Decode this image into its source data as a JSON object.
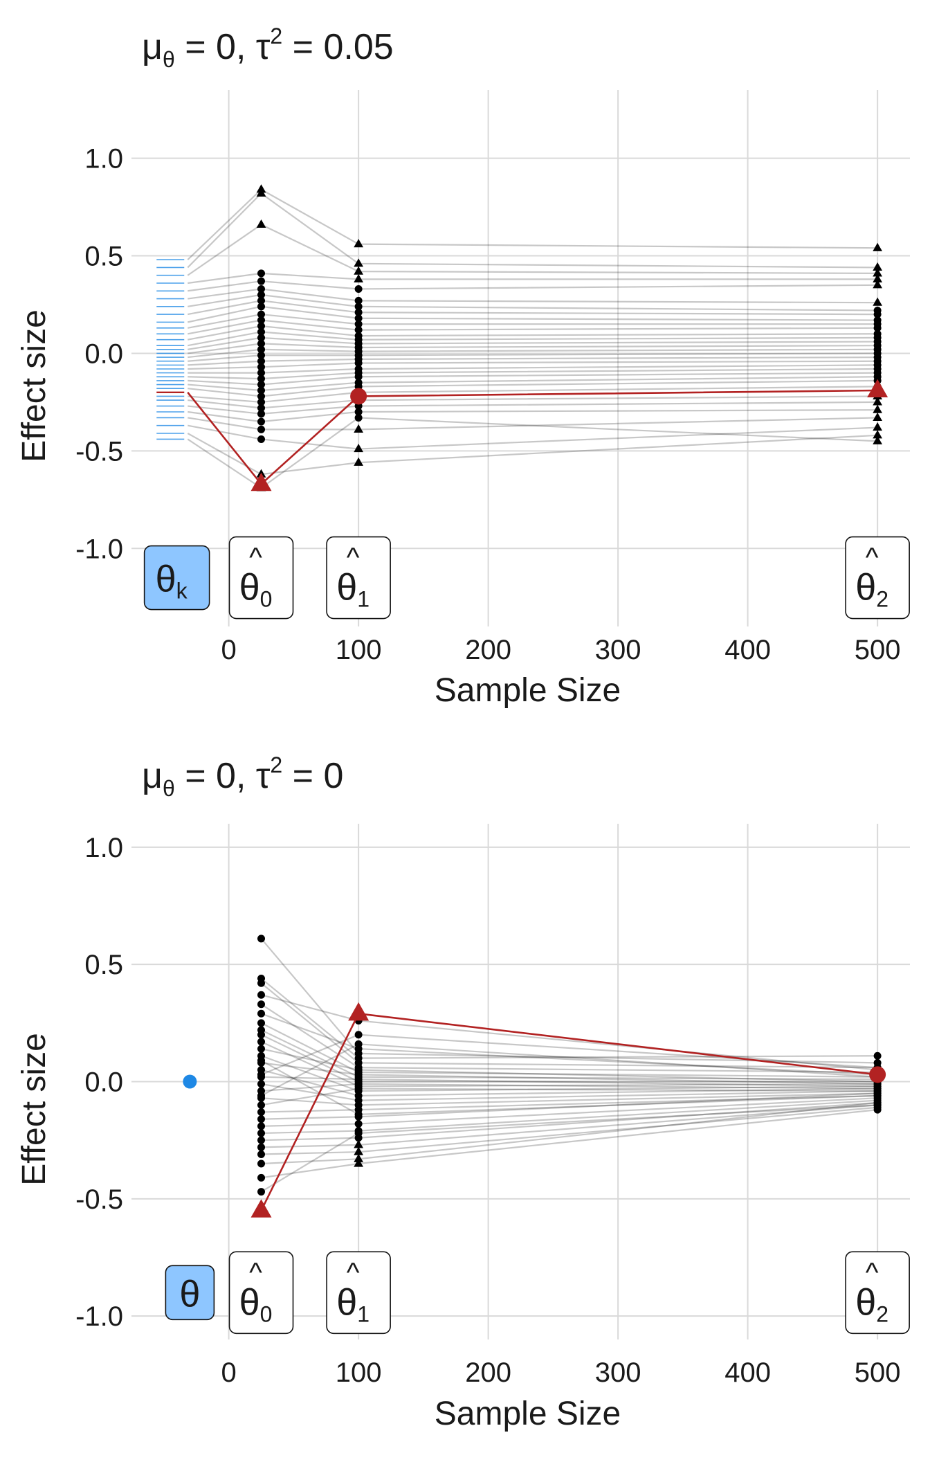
{
  "chart_data": [
    {
      "type": "scatter",
      "title": {
        "main": "μ",
        "main_sub": "θ",
        "mid": " = 0, τ",
        "mid_sup": "2",
        "end": " = 0.05"
      },
      "xlabel": "Sample Size",
      "ylabel": "Effect size",
      "xlim": [
        -75,
        525
      ],
      "ylim": [
        -1.4,
        1.35
      ],
      "xticks": [
        0,
        100,
        200,
        300,
        400,
        500
      ],
      "yticks": [
        1.0,
        0.5,
        0.0,
        -0.5,
        -1.0
      ],
      "xtick_labels": [
        "0",
        "100",
        "200",
        "300",
        "400",
        "500"
      ],
      "ytick_labels": [
        "1.0",
        "0.5",
        "0.0",
        "-0.5",
        "-1.0"
      ],
      "grid": true,
      "true_effect_x": -45,
      "true_effect_kind": "rug",
      "sample_x": [
        25,
        100,
        500
      ],
      "colors": {
        "true": "#1e88e5",
        "highlight": "#b22222",
        "points": "#000000",
        "box_true": "#8ec6ff"
      },
      "labels": {
        "truth": {
          "x": -40,
          "y": -1.15,
          "main": "θ",
          "sub": "k",
          "hat": ""
        },
        "est0": {
          "x": 25,
          "y": -1.15,
          "main": "θ",
          "sub": "0",
          "hat": "^"
        },
        "est1": {
          "x": 100,
          "y": -1.15,
          "main": "θ",
          "sub": "1",
          "hat": "^"
        },
        "est2": {
          "x": 500,
          "y": -1.15,
          "main": "θ",
          "sub": "2",
          "hat": "^"
        }
      },
      "highlight": {
        "theta": -0.2,
        "ys": [
          -0.67,
          -0.22,
          -0.19
        ],
        "shapes": [
          "triangle",
          "circle",
          "triangle"
        ]
      },
      "studies": [
        {
          "theta": 0.48,
          "ys": [
            0.84,
            0.56,
            0.54
          ],
          "shapes": [
            "triangle",
            "triangle",
            "triangle"
          ]
        },
        {
          "theta": 0.44,
          "ys": [
            0.82,
            0.46,
            0.44
          ],
          "shapes": [
            "triangle",
            "triangle",
            "triangle"
          ]
        },
        {
          "theta": 0.4,
          "ys": [
            0.66,
            0.42,
            0.41
          ],
          "shapes": [
            "triangle",
            "triangle",
            "triangle"
          ]
        },
        {
          "theta": 0.36,
          "ys": [
            0.41,
            0.38,
            0.38
          ],
          "shapes": [
            "circle",
            "triangle",
            "triangle"
          ]
        },
        {
          "theta": 0.32,
          "ys": [
            0.37,
            0.33,
            0.35
          ],
          "shapes": [
            "circle",
            "circle",
            "triangle"
          ]
        },
        {
          "theta": 0.28,
          "ys": [
            0.33,
            0.27,
            0.26
          ],
          "shapes": [
            "circle",
            "circle",
            "triangle"
          ]
        },
        {
          "theta": 0.24,
          "ys": [
            0.3,
            0.24,
            0.22
          ],
          "shapes": [
            "circle",
            "circle",
            "circle"
          ]
        },
        {
          "theta": 0.2,
          "ys": [
            0.27,
            0.21,
            0.2
          ],
          "shapes": [
            "circle",
            "circle",
            "circle"
          ]
        },
        {
          "theta": 0.16,
          "ys": [
            0.24,
            0.18,
            0.17
          ],
          "shapes": [
            "circle",
            "circle",
            "circle"
          ]
        },
        {
          "theta": 0.13,
          "ys": [
            0.2,
            0.15,
            0.15
          ],
          "shapes": [
            "circle",
            "circle",
            "circle"
          ]
        },
        {
          "theta": 0.1,
          "ys": [
            0.17,
            0.12,
            0.13
          ],
          "shapes": [
            "circle",
            "circle",
            "circle"
          ]
        },
        {
          "theta": 0.07,
          "ys": [
            0.14,
            0.09,
            0.1
          ],
          "shapes": [
            "circle",
            "circle",
            "circle"
          ]
        },
        {
          "theta": 0.04,
          "ys": [
            0.11,
            0.07,
            0.08
          ],
          "shapes": [
            "circle",
            "circle",
            "circle"
          ]
        },
        {
          "theta": 0.02,
          "ys": [
            0.08,
            0.05,
            0.06
          ],
          "shapes": [
            "circle",
            "circle",
            "circle"
          ]
        },
        {
          "theta": 0.0,
          "ys": [
            0.05,
            0.03,
            0.04
          ],
          "shapes": [
            "circle",
            "circle",
            "circle"
          ]
        },
        {
          "theta": -0.02,
          "ys": [
            0.02,
            0.01,
            0.02
          ],
          "shapes": [
            "circle",
            "circle",
            "circle"
          ]
        },
        {
          "theta": -0.04,
          "ys": [
            -0.01,
            -0.01,
            0.0
          ],
          "shapes": [
            "circle",
            "circle",
            "circle"
          ]
        },
        {
          "theta": -0.06,
          "ys": [
            -0.04,
            -0.03,
            -0.02
          ],
          "shapes": [
            "circle",
            "circle",
            "circle"
          ]
        },
        {
          "theta": -0.08,
          "ys": [
            -0.07,
            -0.05,
            -0.04
          ],
          "shapes": [
            "circle",
            "circle",
            "circle"
          ]
        },
        {
          "theta": -0.1,
          "ys": [
            -0.1,
            -0.08,
            -0.06
          ],
          "shapes": [
            "circle",
            "circle",
            "circle"
          ]
        },
        {
          "theta": -0.12,
          "ys": [
            -0.13,
            -0.1,
            -0.08
          ],
          "shapes": [
            "circle",
            "circle",
            "circle"
          ]
        },
        {
          "theta": -0.14,
          "ys": [
            -0.16,
            -0.12,
            -0.1
          ],
          "shapes": [
            "circle",
            "circle",
            "circle"
          ]
        },
        {
          "theta": -0.16,
          "ys": [
            -0.19,
            -0.15,
            -0.12
          ],
          "shapes": [
            "circle",
            "circle",
            "circle"
          ]
        },
        {
          "theta": -0.18,
          "ys": [
            -0.22,
            -0.17,
            -0.14
          ],
          "shapes": [
            "circle",
            "circle",
            "circle"
          ]
        },
        {
          "theta": -0.22,
          "ys": [
            -0.25,
            -0.2,
            -0.17
          ],
          "shapes": [
            "circle",
            "circle",
            "circle"
          ]
        },
        {
          "theta": -0.24,
          "ys": [
            -0.28,
            -0.24,
            -0.22
          ],
          "shapes": [
            "circle",
            "circle",
            "triangle"
          ]
        },
        {
          "theta": -0.27,
          "ys": [
            -0.31,
            -0.27,
            -0.25
          ],
          "shapes": [
            "circle",
            "circle",
            "triangle"
          ]
        },
        {
          "theta": -0.3,
          "ys": [
            -0.35,
            -0.3,
            -0.29
          ],
          "shapes": [
            "circle",
            "circle",
            "triangle"
          ]
        },
        {
          "theta": -0.33,
          "ys": [
            -0.39,
            -0.39,
            -0.33
          ],
          "shapes": [
            "circle",
            "triangle",
            "triangle"
          ]
        },
        {
          "theta": -0.37,
          "ys": [
            -0.44,
            -0.49,
            -0.38
          ],
          "shapes": [
            "circle",
            "triangle",
            "triangle"
          ]
        },
        {
          "theta": -0.41,
          "ys": [
            -0.62,
            -0.56,
            -0.42
          ],
          "shapes": [
            "triangle",
            "triangle",
            "triangle"
          ]
        },
        {
          "theta": -0.44,
          "ys": [
            -0.69,
            -0.33,
            -0.45
          ],
          "shapes": [
            "triangle",
            "circle",
            "triangle"
          ]
        }
      ]
    },
    {
      "type": "scatter",
      "title": {
        "main": "μ",
        "main_sub": "θ",
        "mid": " = 0, τ",
        "mid_sup": "2",
        "end": " = 0"
      },
      "xlabel": "Sample Size",
      "ylabel": "Effect size",
      "xlim": [
        -75,
        525
      ],
      "ylim": [
        -1.1,
        1.1
      ],
      "xticks": [
        0,
        100,
        200,
        300,
        400,
        500
      ],
      "yticks": [
        1.0,
        0.5,
        0.0,
        -0.5,
        -1.0
      ],
      "xtick_labels": [
        "0",
        "100",
        "200",
        "300",
        "400",
        "500"
      ],
      "ytick_labels": [
        "1.0",
        "0.5",
        "0.0",
        "-0.5",
        "-1.0"
      ],
      "grid": true,
      "true_effect_x": -30,
      "true_effect_kind": "point",
      "sample_x": [
        25,
        100,
        500
      ],
      "colors": {
        "true": "#1e88e5",
        "highlight": "#b22222",
        "points": "#000000",
        "box_true": "#8ec6ff"
      },
      "labels": {
        "truth": {
          "x": -30,
          "y": -0.9,
          "main": "θ",
          "sub": "",
          "hat": ""
        },
        "est0": {
          "x": 25,
          "y": -0.9,
          "main": "θ",
          "sub": "0",
          "hat": "^"
        },
        "est1": {
          "x": 100,
          "y": -0.9,
          "main": "θ",
          "sub": "1",
          "hat": "^"
        },
        "est2": {
          "x": 500,
          "y": -0.9,
          "main": "θ",
          "sub": "2",
          "hat": "^"
        }
      },
      "highlight": {
        "theta": 0.0,
        "ys": [
          -0.55,
          0.29,
          0.03
        ],
        "shapes": [
          "triangle",
          "triangle",
          "circle"
        ]
      },
      "studies": [
        {
          "theta": 0,
          "ys": [
            0.61,
            0.12,
            0.08
          ],
          "shapes": [
            "circle",
            "circle",
            "circle"
          ]
        },
        {
          "theta": 0,
          "ys": [
            0.44,
            0.1,
            0.11
          ],
          "shapes": [
            "circle",
            "circle",
            "circle"
          ]
        },
        {
          "theta": 0,
          "ys": [
            0.42,
            0.08,
            0.06
          ],
          "shapes": [
            "circle",
            "circle",
            "circle"
          ]
        },
        {
          "theta": 0,
          "ys": [
            0.37,
            0.26,
            0.05
          ],
          "shapes": [
            "circle",
            "circle",
            "circle"
          ]
        },
        {
          "theta": 0,
          "ys": [
            0.33,
            0.06,
            0.04
          ],
          "shapes": [
            "circle",
            "circle",
            "circle"
          ]
        },
        {
          "theta": 0,
          "ys": [
            0.29,
            0.14,
            0.03
          ],
          "shapes": [
            "circle",
            "circle",
            "circle"
          ]
        },
        {
          "theta": 0,
          "ys": [
            0.25,
            0.04,
            0.02
          ],
          "shapes": [
            "circle",
            "circle",
            "circle"
          ]
        },
        {
          "theta": 0,
          "ys": [
            0.22,
            0.02,
            0.01
          ],
          "shapes": [
            "circle",
            "circle",
            "circle"
          ]
        },
        {
          "theta": 0,
          "ys": [
            0.2,
            0.0,
            0.0
          ],
          "shapes": [
            "circle",
            "circle",
            "circle"
          ]
        },
        {
          "theta": 0,
          "ys": [
            0.17,
            -0.02,
            -0.01
          ],
          "shapes": [
            "circle",
            "circle",
            "circle"
          ]
        },
        {
          "theta": 0,
          "ys": [
            0.14,
            0.05,
            0.0
          ],
          "shapes": [
            "circle",
            "circle",
            "circle"
          ]
        },
        {
          "theta": 0,
          "ys": [
            0.11,
            -0.04,
            -0.02
          ],
          "shapes": [
            "circle",
            "circle",
            "circle"
          ]
        },
        {
          "theta": 0,
          "ys": [
            0.08,
            0.03,
            -0.01
          ],
          "shapes": [
            "circle",
            "circle",
            "circle"
          ]
        },
        {
          "theta": 0,
          "ys": [
            0.05,
            -0.06,
            -0.03
          ],
          "shapes": [
            "circle",
            "circle",
            "circle"
          ]
        },
        {
          "theta": 0,
          "ys": [
            0.02,
            0.01,
            -0.02
          ],
          "shapes": [
            "circle",
            "circle",
            "circle"
          ]
        },
        {
          "theta": 0,
          "ys": [
            -0.01,
            -0.08,
            -0.04
          ],
          "shapes": [
            "circle",
            "circle",
            "circle"
          ]
        },
        {
          "theta": 0,
          "ys": [
            -0.04,
            -0.01,
            -0.03
          ],
          "shapes": [
            "circle",
            "circle",
            "circle"
          ]
        },
        {
          "theta": 0,
          "ys": [
            -0.07,
            -0.1,
            -0.05
          ],
          "shapes": [
            "circle",
            "circle",
            "circle"
          ]
        },
        {
          "theta": 0,
          "ys": [
            -0.1,
            -0.03,
            -0.04
          ],
          "shapes": [
            "circle",
            "circle",
            "circle"
          ]
        },
        {
          "theta": 0,
          "ys": [
            -0.13,
            -0.12,
            -0.06
          ],
          "shapes": [
            "circle",
            "circle",
            "circle"
          ]
        },
        {
          "theta": 0,
          "ys": [
            -0.16,
            -0.15,
            -0.05
          ],
          "shapes": [
            "circle",
            "circle",
            "circle"
          ]
        },
        {
          "theta": 0,
          "ys": [
            -0.19,
            -0.18,
            -0.07
          ],
          "shapes": [
            "circle",
            "circle",
            "circle"
          ]
        },
        {
          "theta": 0,
          "ys": [
            -0.22,
            -0.21,
            -0.08
          ],
          "shapes": [
            "circle",
            "circle",
            "circle"
          ]
        },
        {
          "theta": 0,
          "ys": [
            -0.25,
            -0.24,
            -0.09
          ],
          "shapes": [
            "circle",
            "circle",
            "circle"
          ]
        },
        {
          "theta": 0,
          "ys": [
            -0.28,
            -0.27,
            -0.1
          ],
          "shapes": [
            "circle",
            "triangle",
            "circle"
          ]
        },
        {
          "theta": 0,
          "ys": [
            -0.31,
            -0.3,
            -0.11
          ],
          "shapes": [
            "circle",
            "triangle",
            "circle"
          ]
        },
        {
          "theta": 0,
          "ys": [
            -0.35,
            -0.33,
            -0.09
          ],
          "shapes": [
            "circle",
            "triangle",
            "circle"
          ]
        },
        {
          "theta": 0,
          "ys": [
            -0.41,
            -0.35,
            -0.12
          ],
          "shapes": [
            "circle",
            "triangle",
            "circle"
          ]
        },
        {
          "theta": 0,
          "ys": [
            -0.47,
            -0.22,
            -0.1
          ],
          "shapes": [
            "circle",
            "circle",
            "circle"
          ]
        },
        {
          "theta": 0,
          "ys": [
            0.03,
            0.2,
            0.06
          ],
          "shapes": [
            "circle",
            "circle",
            "circle"
          ]
        },
        {
          "theta": 0,
          "ys": [
            -0.06,
            0.16,
            0.02
          ],
          "shapes": [
            "circle",
            "circle",
            "circle"
          ]
        },
        {
          "theta": 0,
          "ys": [
            0.09,
            -0.14,
            -0.06
          ],
          "shapes": [
            "circle",
            "circle",
            "circle"
          ]
        }
      ]
    }
  ]
}
